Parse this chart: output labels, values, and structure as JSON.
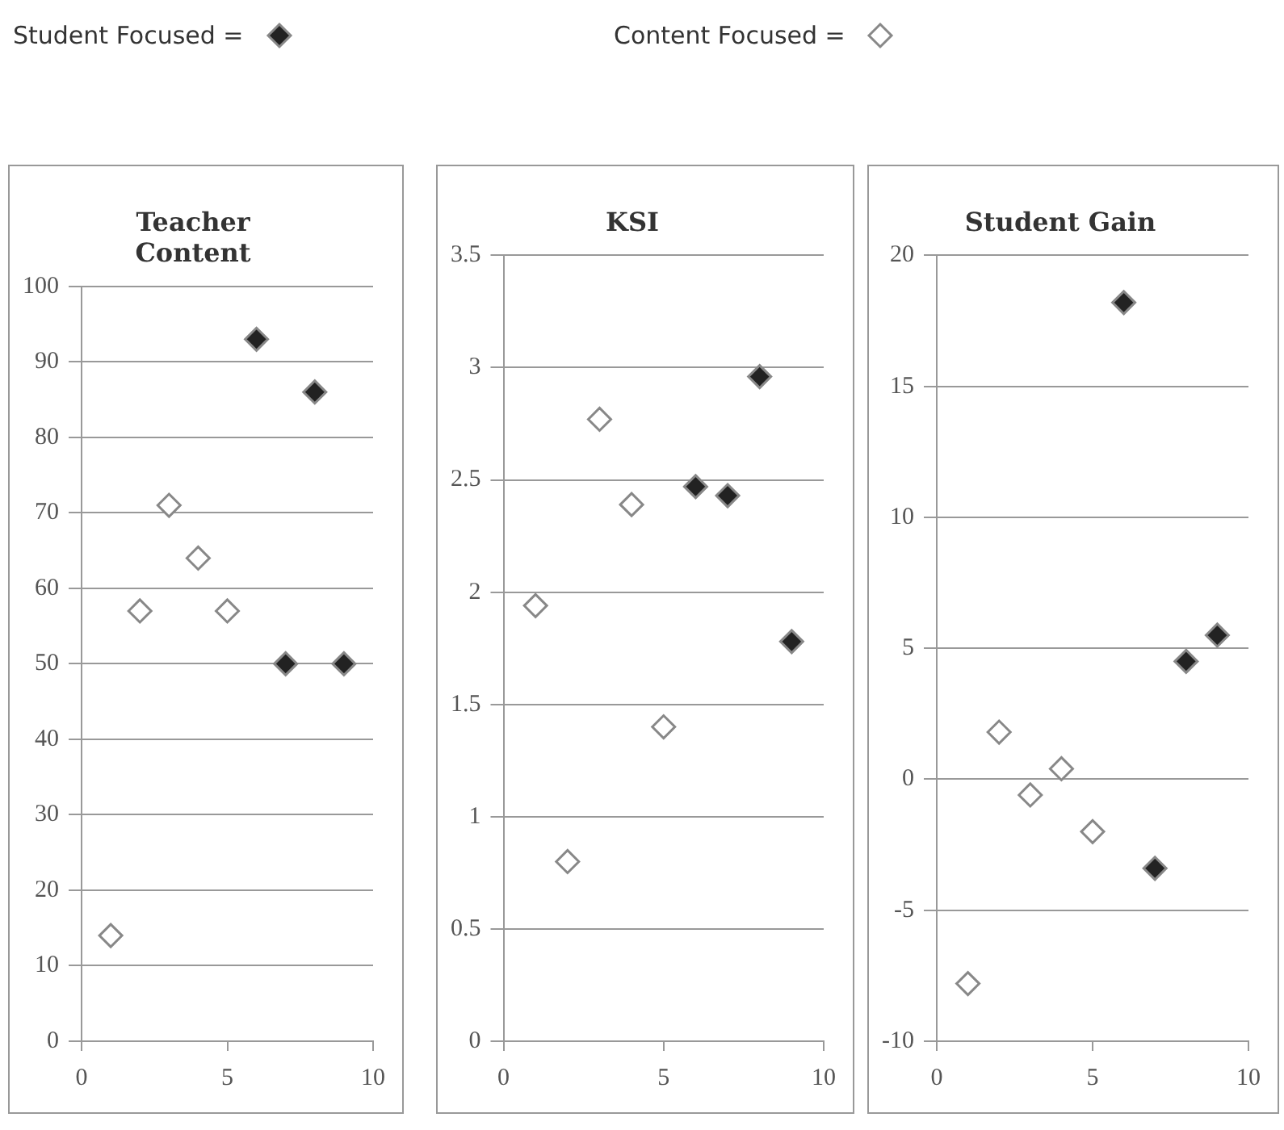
{
  "chart_data": [
    {
      "type": "scatter",
      "title": "Teacher Content",
      "xlim": [
        0,
        10
      ],
      "xticks": [
        0,
        5,
        10
      ],
      "ylim": [
        0,
        100
      ],
      "yticks": [
        0,
        10,
        20,
        30,
        40,
        50,
        60,
        70,
        80,
        90,
        100
      ],
      "grid": "y",
      "marker": "diamond",
      "legend": "top",
      "series": [
        {
          "name": "Student Focused =",
          "color": "#222222",
          "x": [
            6,
            7,
            8,
            9
          ],
          "values": [
            93,
            50,
            86,
            50
          ]
        },
        {
          "name": "Content Focused =",
          "color": "#ffffff",
          "x": [
            1,
            2,
            3,
            4,
            5
          ],
          "values": [
            14,
            57,
            71,
            64,
            57
          ]
        }
      ]
    },
    {
      "type": "scatter",
      "title": "KSI",
      "xlim": [
        0,
        10
      ],
      "xticks": [
        0,
        5,
        10
      ],
      "ylim": [
        0,
        3.5
      ],
      "yticks": [
        0,
        0.5,
        1,
        1.5,
        2,
        2.5,
        3,
        3.5
      ],
      "grid": "y",
      "marker": "diamond",
      "series": [
        {
          "color": "#222222",
          "x": [
            6,
            7,
            8,
            9
          ],
          "values": [
            2.47,
            2.43,
            2.96,
            1.78
          ]
        },
        {
          "color": "#ffffff",
          "x": [
            1,
            2,
            3,
            4,
            5
          ],
          "values": [
            1.94,
            0.8,
            2.77,
            2.39,
            1.4
          ]
        }
      ]
    },
    {
      "type": "scatter",
      "title": "Student Gain",
      "xlim": [
        0,
        10
      ],
      "xticks": [
        0,
        5,
        10
      ],
      "ylim": [
        -10,
        20
      ],
      "yticks": [
        -10,
        -5,
        0,
        5,
        10,
        15,
        20
      ],
      "grid": "y",
      "marker": "diamond",
      "series": [
        {
          "color": "#222222",
          "x": [
            6,
            7,
            8,
            9
          ],
          "values": [
            18.2,
            -3.4,
            4.5,
            5.5
          ]
        },
        {
          "color": "#ffffff",
          "x": [
            1,
            2,
            3,
            4,
            5
          ],
          "values": [
            -7.8,
            1.8,
            -0.6,
            0.4,
            -2.0
          ]
        }
      ]
    }
  ]
}
